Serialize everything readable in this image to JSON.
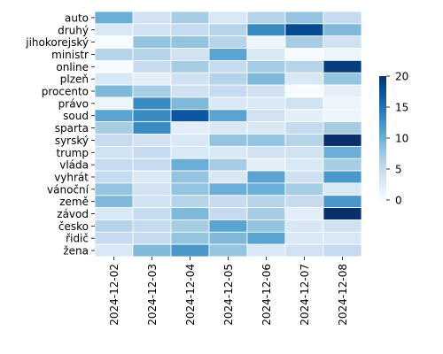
{
  "chart_data": {
    "type": "heatmap",
    "title": "",
    "xlabel": "",
    "ylabel": "",
    "x": [
      "2024-12-02",
      "2024-12-03",
      "2024-12-04",
      "2024-12-05",
      "2024-12-06",
      "2024-12-07",
      "2024-12-08"
    ],
    "y": [
      "auto",
      "druhý",
      "jihokorejský",
      "ministr",
      "online",
      "plzeň",
      "procento",
      "právo",
      "soud",
      "sparta",
      "syrský",
      "trump",
      "vláda",
      "vyhrát",
      "vánoční",
      "země",
      "závod",
      "česko",
      "řidič",
      "žena"
    ],
    "values": [
      [
        10,
        4,
        7,
        3,
        6,
        8,
        5
      ],
      [
        3,
        4,
        5,
        6,
        13,
        18,
        9
      ],
      [
        0,
        8,
        8,
        6,
        1,
        7,
        4
      ],
      [
        6,
        6,
        4,
        11,
        3,
        0,
        1
      ],
      [
        0,
        5,
        7,
        5,
        7,
        6,
        19
      ],
      [
        3,
        2,
        4,
        6,
        9,
        3,
        8
      ],
      [
        9,
        7,
        4,
        5,
        4,
        0,
        2
      ],
      [
        1,
        13,
        9,
        3,
        3,
        4,
        1
      ],
      [
        11,
        13,
        17,
        11,
        4,
        2,
        1
      ],
      [
        7,
        13,
        2,
        3,
        3,
        5,
        7
      ],
      [
        5,
        4,
        3,
        8,
        8,
        6,
        20
      ],
      [
        4,
        5,
        3,
        3,
        4,
        4,
        10
      ],
      [
        5,
        5,
        10,
        7,
        2,
        3,
        7
      ],
      [
        5,
        3,
        8,
        3,
        11,
        4,
        12
      ],
      [
        8,
        4,
        8,
        10,
        10,
        7,
        3
      ],
      [
        9,
        4,
        6,
        5,
        6,
        5,
        12
      ],
      [
        3,
        5,
        9,
        5,
        7,
        2,
        22
      ],
      [
        6,
        5,
        7,
        11,
        8,
        3,
        4
      ],
      [
        5,
        5,
        8,
        9,
        11,
        3,
        3
      ],
      [
        3,
        9,
        12,
        8,
        3,
        4,
        5
      ]
    ],
    "colorbar": {
      "vmin": 0,
      "vmax": 20,
      "ticks": [
        0,
        5,
        10,
        15,
        20
      ],
      "colormap": "Blues"
    },
    "grid": true,
    "cell_border_color": "#ffffff"
  }
}
